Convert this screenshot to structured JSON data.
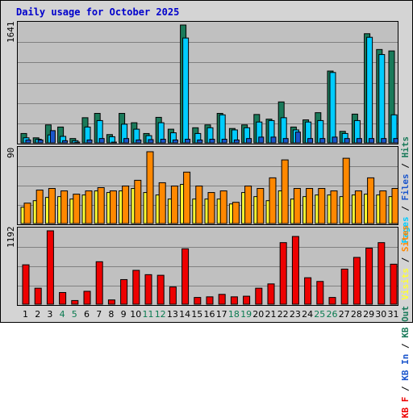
{
  "title": "Daily usage for October 2025",
  "chart_data": [
    {
      "type": "bar",
      "name": "pages-files-hits",
      "ymax_label": "1641",
      "ylim": [
        0,
        1641
      ],
      "grid": true,
      "legend": [
        "Pages",
        "Files",
        "Hits"
      ],
      "legend_separator": " / ",
      "colors": {
        "hits": "#1a7a5a",
        "files": "#00ccff",
        "pages": "#1a55cc"
      },
      "categories": [
        "1",
        "2",
        "3",
        "4",
        "5",
        "6",
        "7",
        "8",
        "9",
        "10",
        "11",
        "12",
        "13",
        "14",
        "15",
        "16",
        "17",
        "18",
        "19",
        "20",
        "21",
        "22",
        "23",
        "24",
        "25",
        "26",
        "27",
        "28",
        "29",
        "30",
        "31"
      ],
      "series": [
        {
          "name": "Hits",
          "values": [
            130,
            70,
            250,
            220,
            60,
            350,
            410,
            115,
            410,
            280,
            130,
            355,
            190,
            1641,
            210,
            250,
            410,
            200,
            250,
            395,
            330,
            570,
            220,
            320,
            420,
            1000,
            160,
            400,
            1520,
            1300,
            1280
          ]
        },
        {
          "name": "Files",
          "values": [
            70,
            50,
            110,
            90,
            30,
            220,
            310,
            85,
            260,
            190,
            100,
            280,
            140,
            1460,
            130,
            210,
            390,
            180,
            210,
            290,
            310,
            350,
            180,
            290,
            310,
            980,
            130,
            310,
            1470,
            1230,
            390
          ]
        },
        {
          "name": "Pages",
          "values": [
            40,
            40,
            170,
            30,
            10,
            40,
            60,
            10,
            60,
            40,
            45,
            50,
            40,
            50,
            40,
            50,
            50,
            40,
            60,
            80,
            80,
            60,
            150,
            60,
            60,
            80,
            60,
            60,
            60,
            60,
            60
          ]
        }
      ]
    },
    {
      "type": "bar",
      "name": "visits-sites",
      "ymax_label": "90",
      "ylim": [
        0,
        90
      ],
      "grid": true,
      "legend": [
        "Visits",
        "Sites"
      ],
      "legend_separator": " / ",
      "colors": {
        "visits": "#ffff33",
        "sites": "#ff8800"
      },
      "categories": [
        "1",
        "2",
        "3",
        "4",
        "5",
        "6",
        "7",
        "8",
        "9",
        "10",
        "11",
        "12",
        "13",
        "14",
        "15",
        "16",
        "17",
        "18",
        "19",
        "20",
        "21",
        "22",
        "23",
        "24",
        "25",
        "26",
        "27",
        "28",
        "29",
        "30",
        "31"
      ],
      "series": [
        {
          "name": "Visits",
          "values": [
            20,
            28,
            32,
            33,
            30,
            35,
            40,
            38,
            40,
            43,
            38,
            35,
            30,
            48,
            30,
            30,
            30,
            24,
            38,
            33,
            28,
            40,
            30,
            33,
            35,
            35,
            33,
            35,
            36,
            35,
            33
          ]
        },
        {
          "name": "Sites",
          "values": [
            25,
            41,
            43,
            40,
            36,
            40,
            44,
            40,
            46,
            53,
            88,
            50,
            46,
            63,
            46,
            38,
            40,
            26,
            46,
            43,
            56,
            78,
            43,
            43,
            43,
            40,
            80,
            40,
            56,
            40,
            43
          ]
        }
      ]
    },
    {
      "type": "bar",
      "name": "kb",
      "ymax_label": "1192",
      "ylim": [
        0,
        1192
      ],
      "grid": true,
      "legend": [
        "KB F",
        "KB In",
        "KB Out"
      ],
      "legend_separator": " / ",
      "colors": {
        "kbf": "#ee0000",
        "kbin": "#1a55cc",
        "kbout": "#1a7a5a"
      },
      "categories": [
        "1",
        "2",
        "3",
        "4",
        "5",
        "6",
        "7",
        "8",
        "9",
        "10",
        "11",
        "12",
        "13",
        "14",
        "15",
        "16",
        "17",
        "18",
        "19",
        "20",
        "21",
        "22",
        "23",
        "24",
        "25",
        "26",
        "27",
        "28",
        "29",
        "30",
        "31"
      ],
      "series": [
        {
          "name": "KB F",
          "values": [
            640,
            260,
            1192,
            190,
            60,
            210,
            690,
            70,
            400,
            550,
            480,
            470,
            280,
            900,
            110,
            120,
            160,
            120,
            130,
            260,
            330,
            1000,
            1100,
            430,
            370,
            110,
            570,
            760,
            910,
            1000,
            650
          ]
        }
      ]
    }
  ],
  "days": [
    "1",
    "2",
    "3",
    "4",
    "5",
    "6",
    "7",
    "8",
    "9",
    "10",
    "11",
    "12",
    "13",
    "14",
    "15",
    "16",
    "17",
    "18",
    "19",
    "20",
    "21",
    "22",
    "23",
    "24",
    "25",
    "26",
    "27",
    "28",
    "29",
    "30",
    "31"
  ],
  "weekend_days": [
    "4",
    "5",
    "11",
    "12",
    "18",
    "19",
    "25",
    "26"
  ]
}
